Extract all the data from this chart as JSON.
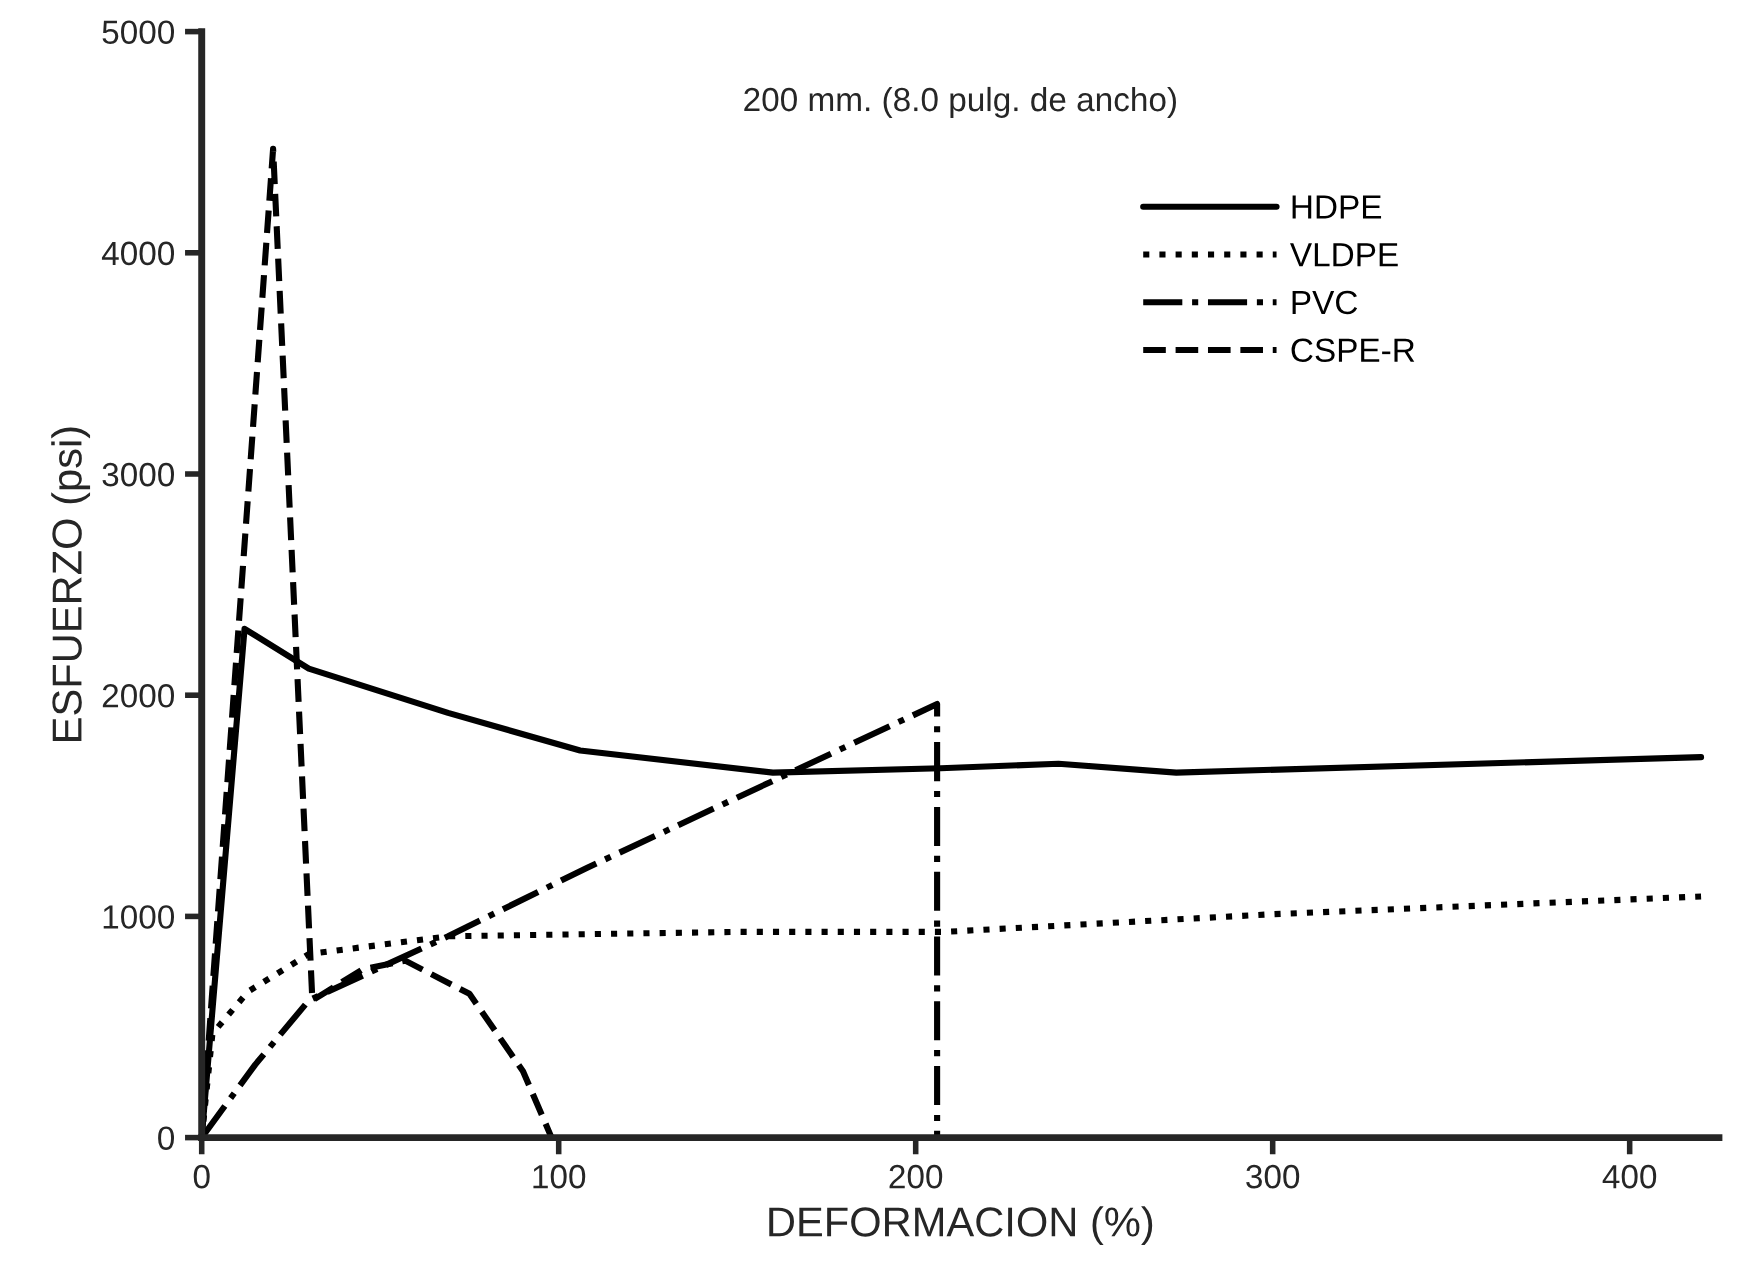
{
  "chart_data": {
    "type": "line",
    "xlabel": "DEFORMACION (%)",
    "ylabel": "ESFUERZO (psi)",
    "annotations": [
      "200 mm. (8.0 pulg. de ancho)"
    ],
    "xlim": [
      0,
      425
    ],
    "ylim": [
      0,
      5000
    ],
    "xticks": [
      0,
      100,
      200,
      300,
      400
    ],
    "yticks": [
      0,
      1000,
      2000,
      3000,
      4000,
      5000
    ],
    "grid": false,
    "legend": "top right",
    "series": [
      {
        "name": "HDPE",
        "color": "#000000",
        "line_style": "solid",
        "x": [
          0,
          12,
          30,
          69,
          106,
          160,
          207,
          240,
          273,
          420
        ],
        "values": [
          0,
          2300,
          2120,
          1920,
          1750,
          1650,
          1670,
          1690,
          1650,
          1720
        ]
      },
      {
        "name": "VLDPE",
        "color": "#000000",
        "line_style": "dotted",
        "x": [
          0,
          3,
          13,
          30,
          69,
          150,
          208,
          300,
          420
        ],
        "values": [
          0,
          470,
          660,
          830,
          910,
          930,
          930,
          1010,
          1090
        ]
      },
      {
        "name": "PVC",
        "color": "#000000",
        "line_style": "dashdot",
        "x": [
          0,
          15,
          30,
          69,
          108,
          206,
          206
        ],
        "values": [
          0,
          330,
          620,
          910,
          1220,
          1960,
          0
        ]
      },
      {
        "name": "CSPE-R",
        "color": "#000000",
        "line_style": "dashed",
        "x": [
          0,
          20,
          31,
          45,
          57,
          75,
          90,
          98
        ],
        "values": [
          0,
          4470,
          620,
          760,
          800,
          650,
          300,
          0
        ]
      }
    ]
  }
}
